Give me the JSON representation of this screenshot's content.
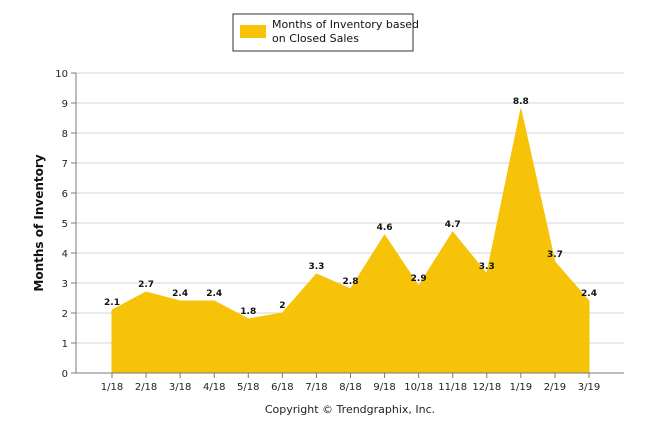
{
  "colors": {
    "area": "#f6c308",
    "grid": "#d4d4d4",
    "axis": "#7a7a7a",
    "legend_border": "#333333"
  },
  "footer": {
    "credit": "Copyright © Trendgraphix, Inc."
  },
  "chart_data": {
    "type": "area",
    "categories": [
      "1/18",
      "2/18",
      "3/18",
      "4/18",
      "5/18",
      "6/18",
      "7/18",
      "8/18",
      "9/18",
      "10/18",
      "11/18",
      "12/18",
      "1/19",
      "2/19",
      "3/19"
    ],
    "series": [
      {
        "name": "Months of Inventory based on Closed Sales",
        "legend_lines": [
          "Months of Inventory based",
          "on Closed Sales"
        ],
        "values": [
          2.1,
          2.7,
          2.4,
          2.4,
          1.8,
          2,
          3.3,
          2.8,
          4.6,
          2.9,
          4.7,
          3.3,
          8.8,
          3.7,
          2.4
        ],
        "labels": [
          "2.1",
          "2.7",
          "2.4",
          "2.4",
          "1.8",
          "2",
          "3.3",
          "2.8",
          "4.6",
          "2.9",
          "4.7",
          "3.3",
          "8.8",
          "3.7",
          "2.4"
        ]
      }
    ],
    "ylabel": "Months of Inventory",
    "xlabel": "",
    "ylim": [
      0,
      10
    ],
    "yticks": [
      "0",
      "1",
      "2",
      "3",
      "4",
      "5",
      "6",
      "7",
      "8",
      "9",
      "10"
    ],
    "grid": true,
    "legend_position": "top-center"
  }
}
